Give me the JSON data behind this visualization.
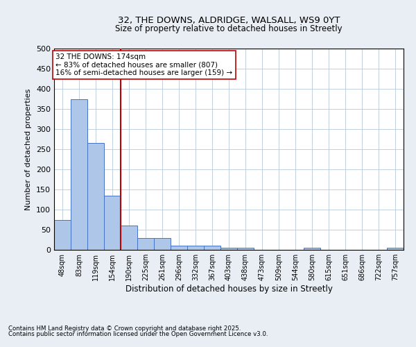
{
  "title1": "32, THE DOWNS, ALDRIDGE, WALSALL, WS9 0YT",
  "title2": "Size of property relative to detached houses in Streetly",
  "xlabel": "Distribution of detached houses by size in Streetly",
  "ylabel": "Number of detached properties",
  "bar_labels": [
    "48sqm",
    "83sqm",
    "119sqm",
    "154sqm",
    "190sqm",
    "225sqm",
    "261sqm",
    "296sqm",
    "332sqm",
    "367sqm",
    "403sqm",
    "438sqm",
    "473sqm",
    "509sqm",
    "544sqm",
    "580sqm",
    "615sqm",
    "651sqm",
    "686sqm",
    "722sqm",
    "757sqm"
  ],
  "bar_values": [
    75,
    375,
    265,
    135,
    60,
    30,
    30,
    10,
    10,
    10,
    5,
    5,
    0,
    0,
    0,
    5,
    0,
    0,
    0,
    0,
    5
  ],
  "bar_color": "#aec6e8",
  "bar_edge_color": "#4472c4",
  "ylim": [
    0,
    500
  ],
  "yticks": [
    0,
    50,
    100,
    150,
    200,
    250,
    300,
    350,
    400,
    450,
    500
  ],
  "vline_x": 3.5,
  "vline_color": "#c00000",
  "annotation_text": "32 THE DOWNS: 174sqm\n← 83% of detached houses are smaller (807)\n16% of semi-detached houses are larger (159) →",
  "annotation_box_color": "#ffffff",
  "annotation_box_edge": "#c00000",
  "footer1": "Contains HM Land Registry data © Crown copyright and database right 2025.",
  "footer2": "Contains public sector information licensed under the Open Government Licence v3.0.",
  "bg_color": "#e8eef4",
  "plot_bg_color": "#ffffff"
}
